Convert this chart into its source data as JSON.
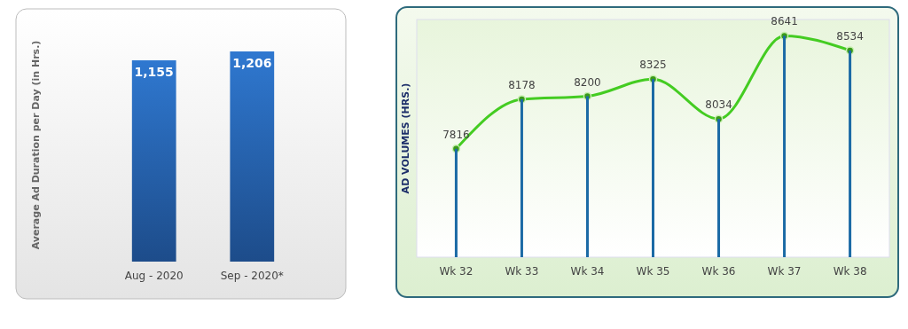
{
  "chart_data": [
    {
      "type": "bar",
      "ylabel": "Average Ad Duration per Day (in Hrs.)",
      "categories": [
        "Aug - 2020",
        "Sep - 2020*"
      ],
      "values": [
        1155,
        1206
      ],
      "value_labels": [
        "1,155",
        "1,206"
      ],
      "color": "#2f78d0",
      "ylim": [
        0,
        1206
      ]
    },
    {
      "type": "line",
      "ylabel": "AD VOLUMES (HRS.)",
      "categories": [
        "Wk 32",
        "Wk 33",
        "Wk 34",
        "Wk 35",
        "Wk 36",
        "Wk 37",
        "Wk 38"
      ],
      "marker": "circle",
      "ylim": [
        7025,
        8760
      ],
      "series": [
        {
          "type": "line",
          "color": "#44cc22",
          "values": [
            7816,
            8178,
            8200,
            8325,
            8034,
            8641,
            8534
          ],
          "data_labels": true
        },
        {
          "type": "bar",
          "color": "#1b6aa5",
          "values": [
            7816,
            8178,
            8200,
            8325,
            8034,
            8641,
            8534
          ]
        }
      ]
    }
  ]
}
